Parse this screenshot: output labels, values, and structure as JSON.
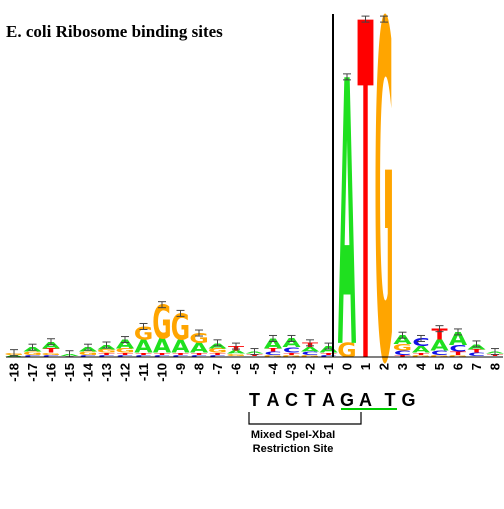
{
  "title": "E. coli Ribosome binding sites",
  "colors": {
    "A": "#1fe01f",
    "C": "#1010e6",
    "G": "#ffa500",
    "T": "#ff0000"
  },
  "chart_data": {
    "type": "sequence-logo",
    "x": [
      -18,
      -17,
      -16,
      -15,
      -14,
      -13,
      -12,
      -11,
      -10,
      -9,
      -8,
      -7,
      -6,
      -5,
      -4,
      -3,
      -2,
      -1,
      0,
      1,
      2,
      3,
      4,
      5,
      6,
      7,
      8
    ],
    "stacks": [
      {
        "pos": -18,
        "letters": [
          {
            "b": "A",
            "h": 0.01
          },
          {
            "b": "G",
            "h": 0.01
          }
        ]
      },
      {
        "pos": -17,
        "letters": [
          {
            "b": "C",
            "h": 0.01
          },
          {
            "b": "G",
            "h": 0.015
          },
          {
            "b": "A",
            "h": 0.02
          }
        ]
      },
      {
        "pos": -16,
        "letters": [
          {
            "b": "C",
            "h": 0.01
          },
          {
            "b": "G",
            "h": 0.01
          },
          {
            "b": "T",
            "h": 0.02
          },
          {
            "b": "A",
            "h": 0.03
          }
        ]
      },
      {
        "pos": -15,
        "letters": [
          {
            "b": "G",
            "h": 0.005
          },
          {
            "b": "A",
            "h": 0.01
          }
        ]
      },
      {
        "pos": -14,
        "letters": [
          {
            "b": "C",
            "h": 0.01
          },
          {
            "b": "G",
            "h": 0.015
          },
          {
            "b": "A",
            "h": 0.02
          }
        ]
      },
      {
        "pos": -13,
        "letters": [
          {
            "b": "C",
            "h": 0.01
          },
          {
            "b": "T",
            "h": 0.01
          },
          {
            "b": "G",
            "h": 0.015
          },
          {
            "b": "A",
            "h": 0.02
          }
        ]
      },
      {
        "pos": -12,
        "letters": [
          {
            "b": "C",
            "h": 0.01
          },
          {
            "b": "T",
            "h": 0.01
          },
          {
            "b": "G",
            "h": 0.02
          },
          {
            "b": "A",
            "h": 0.04
          }
        ]
      },
      {
        "pos": -11,
        "letters": [
          {
            "b": "C",
            "h": 0.01
          },
          {
            "b": "T",
            "h": 0.01
          },
          {
            "b": "A",
            "h": 0.06
          },
          {
            "b": "G",
            "h": 0.06
          }
        ]
      },
      {
        "pos": -10,
        "letters": [
          {
            "b": "C",
            "h": 0.01
          },
          {
            "b": "T",
            "h": 0.01
          },
          {
            "b": "A",
            "h": 0.065
          },
          {
            "b": "G",
            "h": 0.155
          }
        ]
      },
      {
        "pos": -9,
        "letters": [
          {
            "b": "C",
            "h": 0.01
          },
          {
            "b": "T",
            "h": 0.01
          },
          {
            "b": "A",
            "h": 0.06
          },
          {
            "b": "G",
            "h": 0.12
          }
        ]
      },
      {
        "pos": -8,
        "letters": [
          {
            "b": "C",
            "h": 0.01
          },
          {
            "b": "T",
            "h": 0.01
          },
          {
            "b": "A",
            "h": 0.045
          },
          {
            "b": "G",
            "h": 0.045
          }
        ]
      },
      {
        "pos": -7,
        "letters": [
          {
            "b": "C",
            "h": 0.01
          },
          {
            "b": "T",
            "h": 0.01
          },
          {
            "b": "G",
            "h": 0.02
          },
          {
            "b": "A",
            "h": 0.025
          }
        ]
      },
      {
        "pos": -6,
        "letters": [
          {
            "b": "C",
            "h": 0.005
          },
          {
            "b": "G",
            "h": 0.01
          },
          {
            "b": "A",
            "h": 0.015
          },
          {
            "b": "T",
            "h": 0.02
          }
        ]
      },
      {
        "pos": -5,
        "letters": [
          {
            "b": "C",
            "h": 0.005
          },
          {
            "b": "T",
            "h": 0.01
          },
          {
            "b": "A",
            "h": 0.01
          }
        ]
      },
      {
        "pos": -4,
        "letters": [
          {
            "b": "G",
            "h": 0.01
          },
          {
            "b": "C",
            "h": 0.015
          },
          {
            "b": "T",
            "h": 0.015
          },
          {
            "b": "A",
            "h": 0.045
          }
        ]
      },
      {
        "pos": -3,
        "letters": [
          {
            "b": "G",
            "h": 0.01
          },
          {
            "b": "T",
            "h": 0.01
          },
          {
            "b": "C",
            "h": 0.025
          },
          {
            "b": "A",
            "h": 0.04
          }
        ]
      },
      {
        "pos": -2,
        "letters": [
          {
            "b": "G",
            "h": 0.01
          },
          {
            "b": "C",
            "h": 0.015
          },
          {
            "b": "A",
            "h": 0.02
          },
          {
            "b": "T",
            "h": 0.02
          }
        ]
      },
      {
        "pos": -1,
        "letters": [
          {
            "b": "C",
            "h": 0.01
          },
          {
            "b": "T",
            "h": 0.01
          },
          {
            "b": "A",
            "h": 0.03
          }
        ]
      },
      {
        "pos": 0,
        "letters": [
          {
            "b": "G",
            "h": 0.065
          },
          {
            "b": "A",
            "h": 1.22
          }
        ]
      },
      {
        "pos": 1,
        "letters": [
          {
            "b": "T",
            "h": 1.55
          }
        ]
      },
      {
        "pos": 2,
        "letters": [
          {
            "b": "G",
            "h": 1.55
          }
        ]
      },
      {
        "pos": 3,
        "letters": [
          {
            "b": "T",
            "h": 0.01
          },
          {
            "b": "C",
            "h": 0.02
          },
          {
            "b": "G",
            "h": 0.03
          },
          {
            "b": "A",
            "h": 0.04
          }
        ]
      },
      {
        "pos": 4,
        "letters": [
          {
            "b": "G",
            "h": 0.01
          },
          {
            "b": "T",
            "h": 0.01
          },
          {
            "b": "A",
            "h": 0.03
          },
          {
            "b": "C",
            "h": 0.035
          }
        ]
      },
      {
        "pos": 5,
        "letters": [
          {
            "b": "G",
            "h": 0.01
          },
          {
            "b": "C",
            "h": 0.02
          },
          {
            "b": "A",
            "h": 0.05
          },
          {
            "b": "T",
            "h": 0.05
          }
        ]
      },
      {
        "pos": 6,
        "letters": [
          {
            "b": "G",
            "h": 0.01
          },
          {
            "b": "T",
            "h": 0.015
          },
          {
            "b": "C",
            "h": 0.03
          },
          {
            "b": "A",
            "h": 0.06
          }
        ]
      },
      {
        "pos": 7,
        "letters": [
          {
            "b": "G",
            "h": 0.005
          },
          {
            "b": "C",
            "h": 0.015
          },
          {
            "b": "T",
            "h": 0.015
          },
          {
            "b": "A",
            "h": 0.025
          }
        ]
      },
      {
        "pos": 8,
        "letters": [
          {
            "b": "G",
            "h": 0.005
          },
          {
            "b": "T",
            "h": 0.01
          },
          {
            "b": "A",
            "h": 0.01
          }
        ]
      }
    ]
  },
  "sequence": {
    "letters": [
      "T",
      "A",
      "C",
      "T",
      "A",
      "G",
      "A",
      "T",
      "G"
    ],
    "positions": [
      -5,
      -4,
      -3,
      -2,
      -1,
      0,
      1,
      2,
      3
    ]
  },
  "restriction_label": [
    "Mixed SpeI-XbaI",
    "Restriction Site"
  ]
}
